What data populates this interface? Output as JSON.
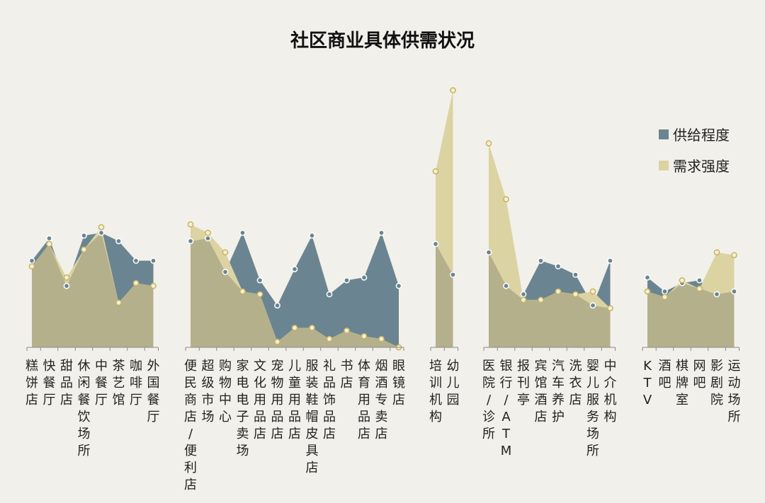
{
  "chart_data": {
    "type": "area",
    "title": "社区商业具体供需状况",
    "xlabel": "",
    "ylabel": "",
    "ylim": [
      0,
      100
    ],
    "grid": false,
    "legend": "right",
    "colors": {
      "supply": "#6a8591",
      "demand": "#dcd3a3",
      "background": "#f2f0ea",
      "marker_fill": "#f3efd8"
    },
    "series": [
      {
        "name": "供给程度",
        "key": "supply"
      },
      {
        "name": "需求强度",
        "key": "demand"
      }
    ],
    "groups": [
      {
        "categories": [
          "糕饼店",
          "快餐厅",
          "甜品店",
          "休闲餐饮场所",
          "中餐厅",
          "茶艺馆",
          "咖啡厅",
          "外国餐厅"
        ],
        "supply": [
          31,
          39,
          22,
          40,
          41,
          38,
          31,
          31
        ],
        "demand": [
          29,
          37,
          25,
          35,
          43,
          16,
          23,
          22
        ]
      },
      {
        "categories": [
          "便民商店/便利店",
          "超级市场",
          "购物中心",
          "家电电子卖场",
          "文化用品店",
          "宠物用品店",
          "儿童用品店",
          "服装鞋帽皮具店",
          "礼品饰品店",
          "书店",
          "体育用品店",
          "烟酒专卖店",
          "眼镜店"
        ],
        "supply": [
          38,
          39,
          27,
          41,
          24,
          15,
          28,
          40,
          19,
          24,
          25,
          41,
          22
        ],
        "demand": [
          44,
          41,
          34,
          20,
          19,
          2,
          7,
          7,
          3,
          6,
          4,
          3,
          0
        ]
      },
      {
        "categories": [
          "培训机构",
          "幼儿园"
        ],
        "supply": [
          37,
          26
        ],
        "demand": [
          63,
          92
        ]
      },
      {
        "categories": [
          "医院/诊所",
          "银行/ATM",
          "报刊亭",
          "宾馆酒店",
          "汽车养护",
          "洗衣店",
          "婴儿服务场所",
          "中介机构"
        ],
        "supply": [
          34,
          22,
          19,
          31,
          29,
          26,
          15,
          31
        ],
        "demand": [
          73,
          53,
          17,
          17,
          20,
          19,
          20,
          14
        ]
      },
      {
        "categories": [
          "KTV",
          "酒吧",
          "棋牌室",
          "网吧",
          "影剧院",
          "运动场所"
        ],
        "supply": [
          25,
          20,
          23,
          24,
          19,
          20
        ],
        "demand": [
          20,
          18,
          24,
          21,
          34,
          33
        ]
      }
    ]
  }
}
